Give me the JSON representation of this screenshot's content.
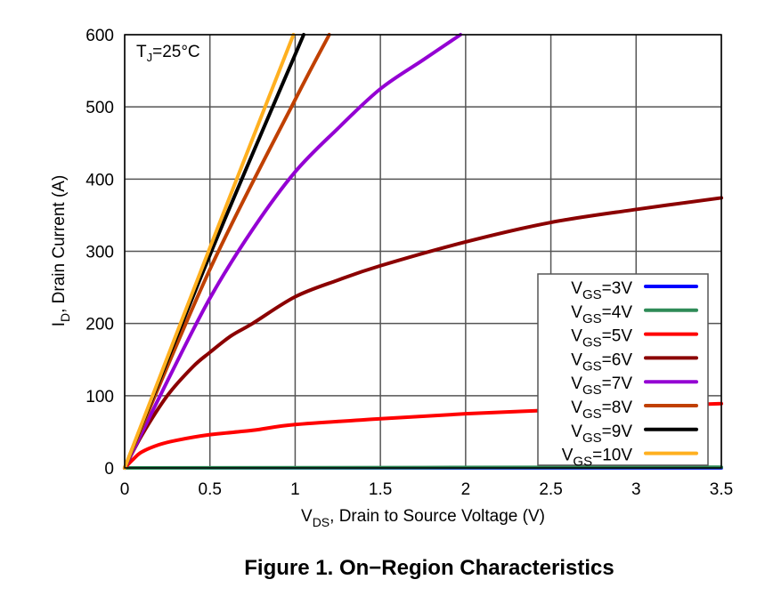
{
  "chart_data": {
    "type": "line",
    "title": "Figure 1. On−Region Characteristics",
    "xlabel": {
      "main": "V",
      "sub": "DS",
      "rest": ", Drain to Source Voltage (V)"
    },
    "ylabel": {
      "main": "I",
      "sub": "D",
      "rest": ", Drain Current (A)"
    },
    "annotation": {
      "main": "T",
      "sub": "J",
      "rest": "=25°C"
    },
    "xlim": [
      0,
      3.5
    ],
    "ylim": [
      0,
      600
    ],
    "xticks": [
      0,
      0.5,
      1,
      1.5,
      2,
      2.5,
      3,
      3.5
    ],
    "xtick_labels": [
      "0",
      "0.5",
      "1",
      "1.5",
      "2",
      "2.5",
      "3",
      "3.5"
    ],
    "yticks": [
      0,
      100,
      200,
      300,
      400,
      500,
      600
    ],
    "ytick_labels": [
      "0",
      "100",
      "200",
      "300",
      "400",
      "500",
      "600"
    ],
    "grid": true,
    "legend_placement": "bottom-right",
    "series": [
      {
        "name": "VGS=3V",
        "label_main": "V",
        "label_sub": "GS",
        "label_rest": "=3V",
        "color": "#0000ff",
        "x": [
          0,
          3.5
        ],
        "y": [
          0,
          0
        ]
      },
      {
        "name": "VGS=4V",
        "label_main": "V",
        "label_sub": "GS",
        "label_rest": "=4V",
        "color": "#2e8b57",
        "x": [
          0,
          3.5
        ],
        "y": [
          0,
          1
        ]
      },
      {
        "name": "VGS=5V",
        "label_main": "V",
        "label_sub": "GS",
        "label_rest": "=5V",
        "color": "#ff0000",
        "x": [
          0,
          0.05,
          0.1,
          0.2,
          0.3,
          0.5,
          0.75,
          1,
          1.5,
          2,
          2.5,
          3,
          3.5
        ],
        "y": [
          0,
          12,
          22,
          32,
          38,
          46,
          52,
          60,
          68,
          75,
          80,
          85,
          89
        ]
      },
      {
        "name": "VGS=6V",
        "label_main": "V",
        "label_sub": "GS",
        "label_rest": "=6V",
        "color": "#8b0000",
        "x": [
          0,
          0.1,
          0.25,
          0.4,
          0.5,
          0.625,
          0.75,
          1,
          1.25,
          1.5,
          2,
          2.5,
          3,
          3.5
        ],
        "y": [
          0,
          45,
          100,
          140,
          160,
          183,
          200,
          237,
          260,
          280,
          313,
          340,
          358,
          374
        ]
      },
      {
        "name": "VGS=7V",
        "label_main": "V",
        "label_sub": "GS",
        "label_rest": "=7V",
        "color": "#9400d3",
        "x": [
          0,
          0.25,
          0.5,
          0.75,
          1,
          1.25,
          1.5,
          1.75,
          1.97
        ],
        "y": [
          0,
          120,
          235,
          330,
          410,
          470,
          525,
          565,
          600
        ]
      },
      {
        "name": "VGS=8V",
        "label_main": "V",
        "label_sub": "GS",
        "label_rest": "=8V",
        "color": "#c04000",
        "x": [
          0,
          0.5,
          1,
          1.2
        ],
        "y": [
          0,
          275,
          510,
          600
        ]
      },
      {
        "name": "VGS=9V",
        "label_main": "V",
        "label_sub": "GS",
        "label_rest": "=9V",
        "color": "#000000",
        "x": [
          0,
          0.5,
          1.05
        ],
        "y": [
          0,
          295,
          600
        ]
      },
      {
        "name": "VGS=10V",
        "label_main": "V",
        "label_sub": "GS",
        "label_rest": "=10V",
        "color": "#ffb020",
        "x": [
          0,
          0.5,
          0.99
        ],
        "y": [
          0,
          305,
          600
        ]
      }
    ]
  }
}
